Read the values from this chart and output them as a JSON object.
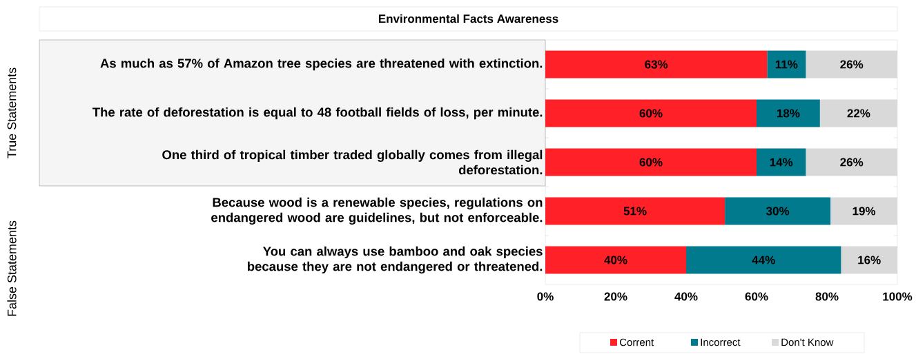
{
  "chart_data": {
    "type": "bar",
    "orientation": "horizontal",
    "stacked": true,
    "title": "Environmental Facts Awareness",
    "categories": [
      "As much as 57% of Amazon tree species are threatened with extinction.",
      "The rate of deforestation is equal to 48 football fields of loss, per minute.",
      "One third of tropical timber traded globally comes from illegal deforestation.",
      "Because wood is a renewable species, regulations on endangered wood are guidelines, but not enforceable.",
      "You can always use bamboo and oak species because they are not endangered or threatened."
    ],
    "series": [
      {
        "name": "Corrent",
        "color": "#ff2028",
        "values": [
          63,
          60,
          60,
          51,
          40
        ],
        "value_labels": [
          "63%",
          "60%",
          "60%",
          "51%",
          "40%"
        ]
      },
      {
        "name": "Incorrect",
        "color": "#007a8c",
        "values": [
          11,
          18,
          14,
          30,
          44
        ],
        "value_labels": [
          "11%",
          "18%",
          "14%",
          "30%",
          "44%"
        ]
      },
      {
        "name": "Don't Know",
        "color": "#d9d9d9",
        "values": [
          26,
          22,
          26,
          19,
          16
        ],
        "value_labels": [
          "26%",
          "22%",
          "26%",
          "19%",
          "16%"
        ]
      }
    ],
    "xlim": [
      0,
      100
    ],
    "xticks": [
      {
        "value": 0,
        "label": "0%"
      },
      {
        "value": 20,
        "label": "20%"
      },
      {
        "value": 40,
        "label": "40%"
      },
      {
        "value": 60,
        "label": "60%"
      },
      {
        "value": 80,
        "label": "80%"
      },
      {
        "value": 100,
        "label": "100%"
      }
    ],
    "annotations": [
      "True Statements",
      "False Statements"
    ],
    "legend": "bottom",
    "grid": false
  }
}
